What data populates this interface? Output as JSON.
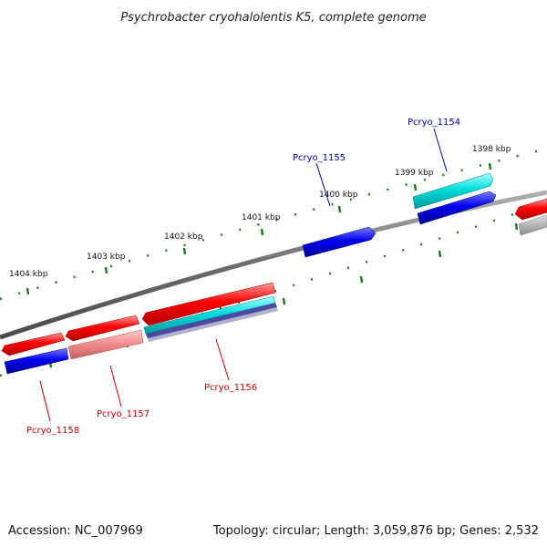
{
  "title": "Psychrobacter cryohalolentis K5, complete genome",
  "footer": {
    "accession": "Accession: NC_007969",
    "summary": "Topology: circular; Length: 3,059,876 bp; Genes: 2,532"
  },
  "colors": {
    "forward_cds": "#ff0000",
    "reverse_cds": "#0000ee",
    "reverse_cds_alt": "#00cccc",
    "pseudo_cds": "#ee8a8a",
    "backbone": "#7a7a7a",
    "tick": "#1a7a1a",
    "label_forward": "#cc0000",
    "label_reverse": "#0000aa"
  },
  "scale_labels": [
    "1404 kbp",
    "1403 kbp",
    "1402 kbp",
    "1401 kbp",
    "1400 kbp",
    "1399 kbp",
    "1398 kbp"
  ],
  "gene_labels": {
    "pcryo_1154": "Pcryo_1154",
    "pcryo_1155": "Pcryo_1155",
    "pcryo_1156": "Pcryo_1156",
    "pcryo_1157": "Pcryo_1157",
    "pcryo_1158": "Pcryo_1158"
  }
}
